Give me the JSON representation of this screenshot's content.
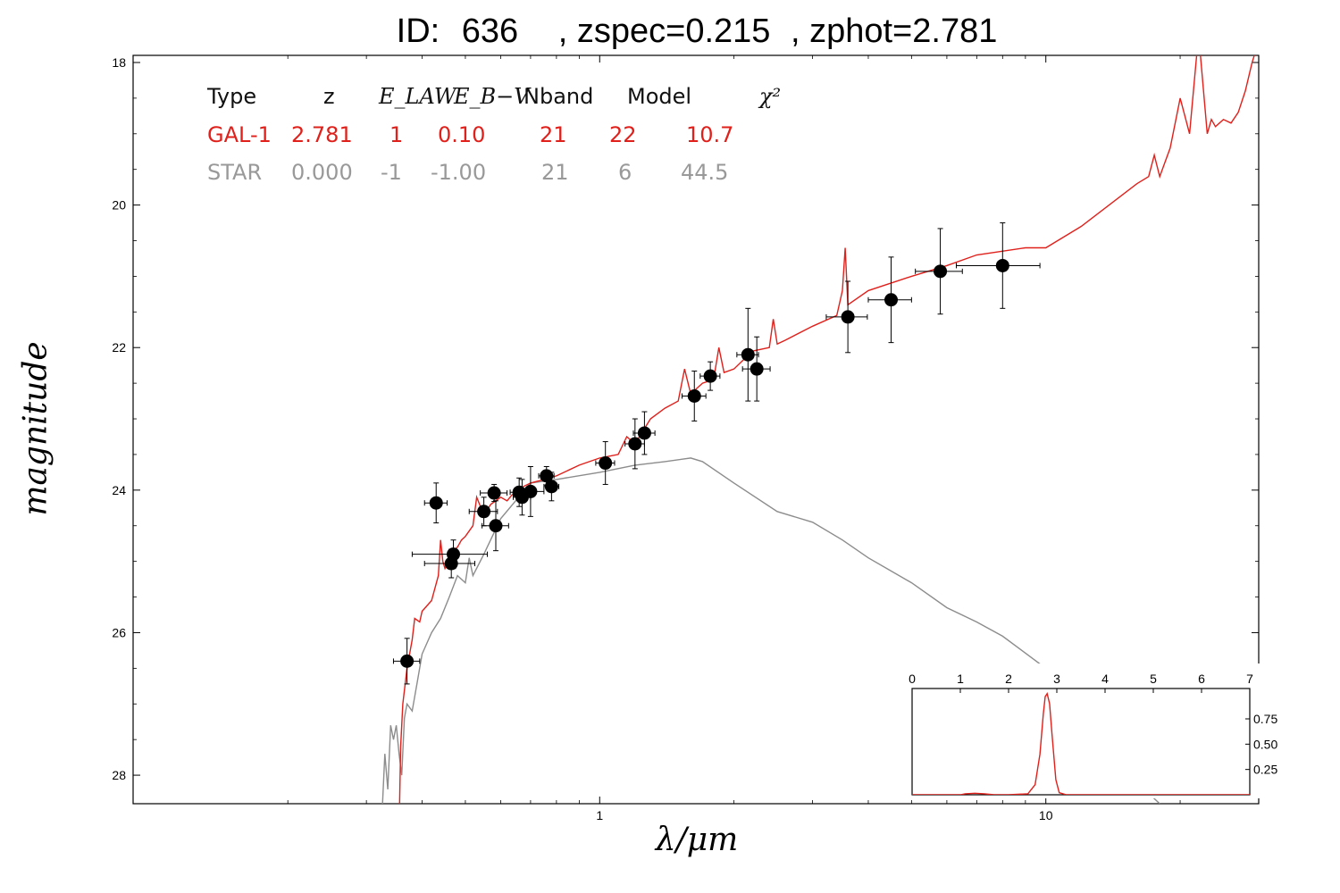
{
  "title": {
    "id_label": "ID:",
    "id_value": "636",
    "zspec": ", zspec=0.215",
    "zphot": ", zphot=2.781"
  },
  "axes": {
    "xlabel": "λ/μm",
    "ylabel": "magnitude"
  },
  "table": {
    "headers": [
      "Type",
      "z",
      "E_LAW",
      "E_B−V",
      "Nband",
      "Model",
      "χ²"
    ],
    "rows": [
      {
        "type": "GAL-1",
        "z": "2.781",
        "elaw": "1",
        "ebv": "0.10",
        "nband": "21",
        "model": "22",
        "chi2": "10.7",
        "color": "#e0201b"
      },
      {
        "type": "STAR",
        "z": "0.000",
        "elaw": "-1",
        "ebv": "-1.00",
        "nband": "21",
        "model": "6",
        "chi2": "44.5",
        "color": "#999999"
      }
    ]
  },
  "colors": {
    "galaxy": "#e0201b",
    "star": "#8c8c8c",
    "points": "#000000"
  },
  "chart_data": [
    {
      "type": "scatter",
      "x_scale": "log",
      "y_inverted": true,
      "xlim": [
        0.09,
        30
      ],
      "ylim": [
        28.4,
        17.9
      ],
      "xticks": [
        {
          "value": 1,
          "label": "1"
        },
        {
          "value": 10,
          "label": "10"
        }
      ],
      "yticks": [
        18,
        20,
        22,
        24,
        26,
        28
      ],
      "grid": false,
      "series": [
        {
          "kind": "photometry",
          "points": [
            {
              "x": 0.37,
              "y": 26.4,
              "xerr": 0.025,
              "yerr": 0.32
            },
            {
              "x": 0.43,
              "y": 24.18,
              "xerr": 0.025,
              "yerr": 0.28
            },
            {
              "x": 0.47,
              "y": 24.9,
              "xerr": 0.09,
              "yerr": 0.2
            },
            {
              "x": 0.465,
              "y": 25.03,
              "xerr": 0.06,
              "yerr": 0.2
            },
            {
              "x": 0.55,
              "y": 24.3,
              "xerr": 0.04,
              "yerr": 0.2
            },
            {
              "x": 0.58,
              "y": 24.04,
              "xerr": 0.04,
              "yerr": 0.12
            },
            {
              "x": 0.585,
              "y": 24.5,
              "xerr": 0.04,
              "yerr": 0.35
            },
            {
              "x": 0.66,
              "y": 24.03,
              "xerr": 0.03,
              "yerr": 0.2
            },
            {
              "x": 0.67,
              "y": 24.1,
              "xerr": 0.03,
              "yerr": 0.25
            },
            {
              "x": 0.7,
              "y": 24.02,
              "xerr": 0.05,
              "yerr": 0.35
            },
            {
              "x": 0.76,
              "y": 23.8,
              "xerr": 0.03,
              "yerr": 0.13
            },
            {
              "x": 0.78,
              "y": 23.95,
              "xerr": 0.03,
              "yerr": 0.2
            },
            {
              "x": 1.03,
              "y": 23.62,
              "xerr": 0.05,
              "yerr": 0.3
            },
            {
              "x": 1.2,
              "y": 23.35,
              "xerr": 0.06,
              "yerr": 0.35
            },
            {
              "x": 1.26,
              "y": 23.2,
              "xerr": 0.07,
              "yerr": 0.3
            },
            {
              "x": 1.63,
              "y": 22.68,
              "xerr": 0.1,
              "yerr": 0.35
            },
            {
              "x": 1.77,
              "y": 22.4,
              "xerr": 0.09,
              "yerr": 0.2
            },
            {
              "x": 2.15,
              "y": 22.1,
              "xerr": 0.12,
              "yerr": 0.65
            },
            {
              "x": 2.25,
              "y": 22.3,
              "xerr": 0.16,
              "yerr": 0.45
            },
            {
              "x": 3.6,
              "y": 21.57,
              "xerr": 0.38,
              "yerr": 0.5
            },
            {
              "x": 4.5,
              "y": 21.33,
              "xerr": 0.5,
              "yerr": 0.6
            },
            {
              "x": 5.8,
              "y": 20.93,
              "xerr": 0.7,
              "yerr": 0.6
            },
            {
              "x": 8.0,
              "y": 20.85,
              "xerr": 1.7,
              "yerr": 0.6
            }
          ]
        },
        {
          "kind": "model",
          "label": "GAL-1",
          "color": "#e0201b",
          "x": [
            0.356,
            0.358,
            0.362,
            0.37,
            0.38,
            0.385,
            0.395,
            0.4,
            0.42,
            0.435,
            0.44,
            0.445,
            0.45,
            0.47,
            0.48,
            0.49,
            0.5,
            0.52,
            0.53,
            0.55,
            0.57,
            0.6,
            0.62,
            0.65,
            0.7,
            0.75,
            0.8,
            0.9,
            1.0,
            1.1,
            1.15,
            1.2,
            1.3,
            1.4,
            1.5,
            1.55,
            1.6,
            1.7,
            1.8,
            1.85,
            1.9,
            2.0,
            2.2,
            2.4,
            2.45,
            2.5,
            2.6,
            3.0,
            3.4,
            3.5,
            3.55,
            3.6,
            4.0,
            5.0,
            6.0,
            7.0,
            9.0,
            10.0,
            12.0,
            16.0,
            17.0,
            17.5,
            18.0,
            19.0,
            20.0,
            21.0,
            22.0,
            23.0,
            23.5,
            24.0,
            25.0,
            26.0,
            27.0,
            28.0,
            29.0,
            30.0
          ],
          "y": [
            28.4,
            27.6,
            27.0,
            26.5,
            26.1,
            25.8,
            25.85,
            25.7,
            25.55,
            25.2,
            24.7,
            25.0,
            25.1,
            24.85,
            24.8,
            24.7,
            24.65,
            24.5,
            24.1,
            24.35,
            24.2,
            24.1,
            24.15,
            24.0,
            23.9,
            23.85,
            23.8,
            23.65,
            23.55,
            23.5,
            23.25,
            23.35,
            23.0,
            22.85,
            22.75,
            22.3,
            22.65,
            22.5,
            22.45,
            22.0,
            22.35,
            22.3,
            22.05,
            22.0,
            21.6,
            21.95,
            21.9,
            21.7,
            21.55,
            21.2,
            20.6,
            21.4,
            21.2,
            21.0,
            20.85,
            20.7,
            20.6,
            20.6,
            20.3,
            19.7,
            19.6,
            19.3,
            19.6,
            19.2,
            18.5,
            19.0,
            17.6,
            19.0,
            18.8,
            18.9,
            18.8,
            18.85,
            18.7,
            18.4,
            18.0,
            17.7
          ]
        },
        {
          "kind": "model",
          "label": "STAR",
          "color": "#8c8c8c",
          "x": [
            0.326,
            0.33,
            0.335,
            0.34,
            0.345,
            0.35,
            0.355,
            0.36,
            0.365,
            0.37,
            0.38,
            0.39,
            0.4,
            0.42,
            0.44,
            0.46,
            0.48,
            0.5,
            0.51,
            0.52,
            0.55,
            0.6,
            0.7,
            0.8,
            1.0,
            1.2,
            1.4,
            1.6,
            1.7,
            2.0,
            2.5,
            3.0,
            3.5,
            4.0,
            5.0,
            6.0,
            7.0,
            8.0,
            10.0,
            12.0,
            14.0,
            16.0,
            18.0
          ],
          "y": [
            28.4,
            27.7,
            28.2,
            27.3,
            27.5,
            27.3,
            27.7,
            28.0,
            27.2,
            27.0,
            27.1,
            26.7,
            26.3,
            26.0,
            25.8,
            25.5,
            25.2,
            25.3,
            24.95,
            25.2,
            24.9,
            24.4,
            23.9,
            23.85,
            23.75,
            23.65,
            23.6,
            23.55,
            23.6,
            23.9,
            24.3,
            24.45,
            24.7,
            24.95,
            25.3,
            25.65,
            25.85,
            26.05,
            26.5,
            27.1,
            27.6,
            28.1,
            28.4
          ]
        }
      ]
    },
    {
      "type": "line",
      "role": "inset",
      "xlim": [
        0,
        7
      ],
      "ylim": [
        0,
        1.05
      ],
      "xticks": [
        0,
        1,
        2,
        3,
        4,
        5,
        6,
        7
      ],
      "yticks": [
        {
          "value": 0.25,
          "label": "0.25"
        },
        {
          "value": 0.5,
          "label": "0.50"
        },
        {
          "value": 0.75,
          "label": "0.75"
        }
      ],
      "series": [
        {
          "color": "#e0201b",
          "x": [
            0,
            1.0,
            1.1,
            1.3,
            1.5,
            1.7,
            2.0,
            2.4,
            2.55,
            2.65,
            2.72,
            2.76,
            2.8,
            2.85,
            2.9,
            2.98,
            3.05,
            3.2,
            4.0,
            5.0,
            6.0,
            7.0
          ],
          "y": [
            0,
            0,
            0.01,
            0.015,
            0.01,
            0,
            0,
            0.01,
            0.1,
            0.4,
            0.8,
            0.97,
            1.0,
            0.9,
            0.6,
            0.15,
            0.02,
            0,
            0,
            0,
            0,
            0
          ]
        }
      ]
    }
  ]
}
